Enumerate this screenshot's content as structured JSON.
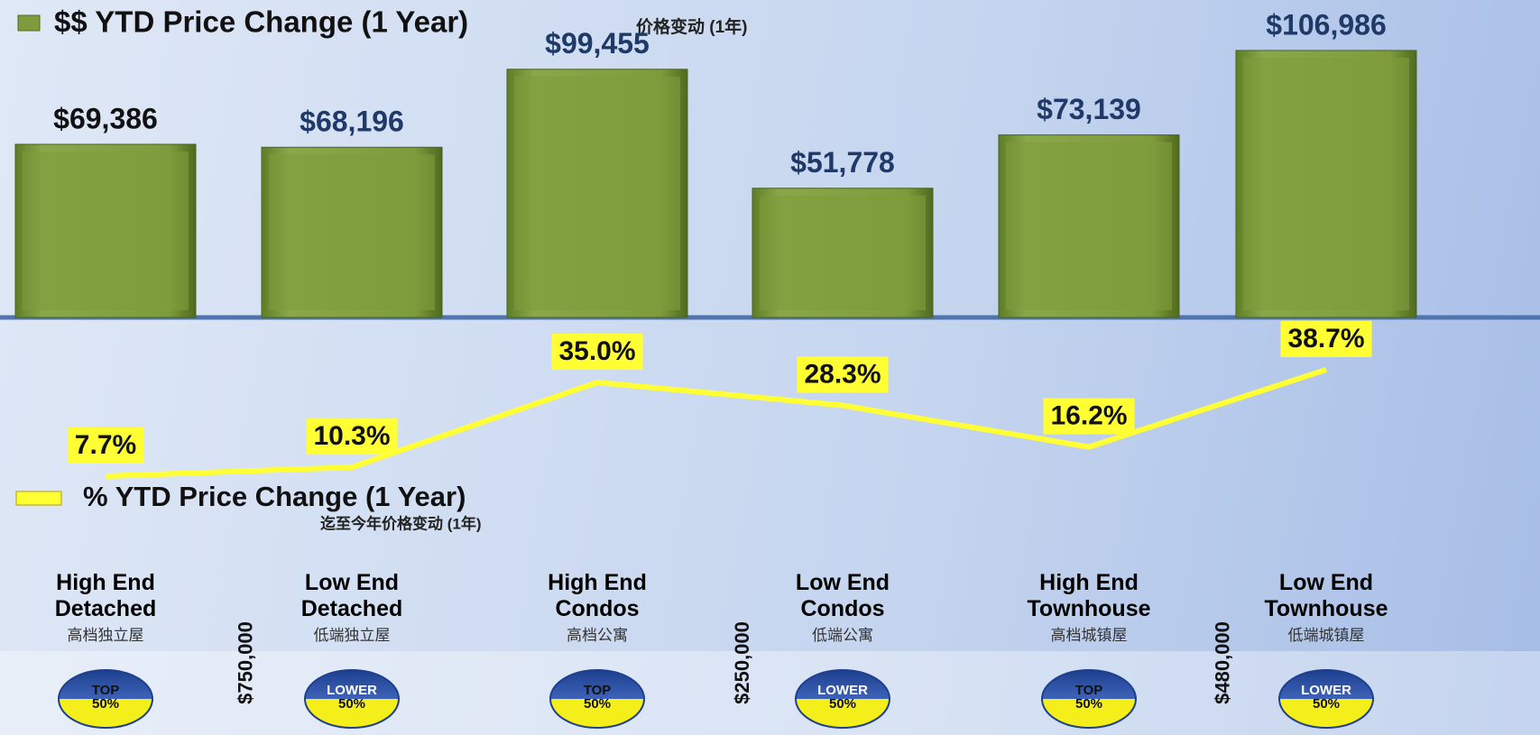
{
  "chart_data": [
    {
      "type": "bar",
      "title": "$$ YTD Price Change (1 Year)",
      "subtitle": "价格变动 (1年)",
      "color": "#7e9c3c",
      "categories": [
        "High End Detached",
        "Low End Detached",
        "High End Condos",
        "Low End Condos",
        "High End Townhouse",
        "Low End Townhouse"
      ],
      "category_subtitles": [
        "高档独立屋",
        "低端独立屋",
        "高档公寓",
        "低端公寓",
        "高档城镇屋",
        "低端城镇屋"
      ],
      "badges": [
        [
          "TOP",
          "50%"
        ],
        [
          "LOWER",
          "50%"
        ],
        [
          "TOP",
          "50%"
        ],
        [
          "LOWER",
          "50%"
        ],
        [
          "TOP",
          "50%"
        ],
        [
          "LOWER",
          "50%"
        ]
      ],
      "thresholds": [
        "$750,000",
        "$250,000",
        "$480,000"
      ],
      "values": [
        69386,
        68196,
        99455,
        51778,
        73139,
        106986
      ],
      "value_labels": [
        "$69,386",
        "$68,196",
        "$99,455",
        "$51,778",
        "$73,139",
        "$106,986"
      ]
    },
    {
      "type": "line",
      "title": "% YTD Price Change (1 Year)",
      "subtitle": "迄至今年价格变动 (1年)",
      "color": "#ffff33",
      "values": [
        7.7,
        10.3,
        35.0,
        28.3,
        16.2,
        38.7
      ],
      "value_labels": [
        "7.7%",
        "10.3%",
        "35.0%",
        "28.3%",
        "16.2%",
        "38.7%"
      ]
    }
  ]
}
